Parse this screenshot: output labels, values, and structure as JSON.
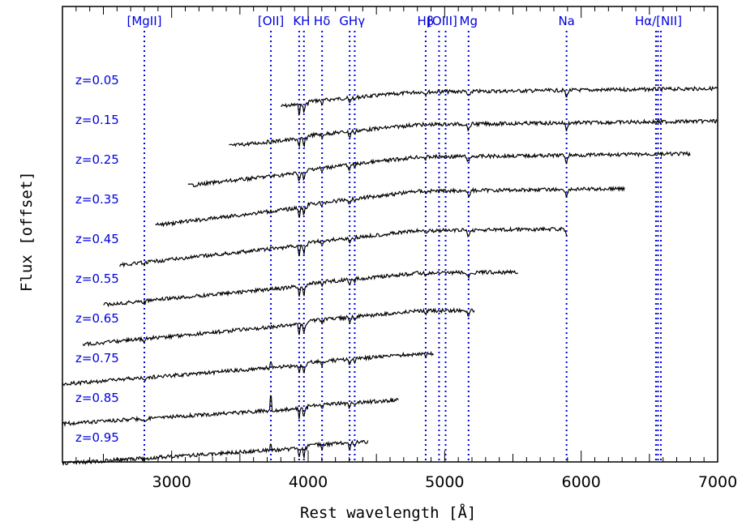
{
  "chart_data": {
    "type": "line",
    "title": "",
    "xlabel": "Rest wavelength [Å]",
    "ylabel": "Flux [offset]",
    "xlim": [
      2200,
      7000
    ],
    "xticks": [
      3000,
      4000,
      5000,
      6000,
      7000
    ],
    "grid": false,
    "line_color": "#000000",
    "label_color": "#0000e0",
    "lines": [
      {
        "label": "[MgII]",
        "x": 2800
      },
      {
        "label": "[OII]",
        "x": 3727
      },
      {
        "label": "K",
        "x": 3934
      },
      {
        "label": "H",
        "x": 3969
      },
      {
        "label": "Hδ",
        "x": 4102
      },
      {
        "label": "G",
        "x": 4304
      },
      {
        "label": "Hγ",
        "x": 4341
      },
      {
        "label": "Hβ",
        "x": 4861
      },
      {
        "label": "[OIII]",
        "x": 4959
      },
      {
        "label": "[OIII]",
        "x": 5007
      },
      {
        "label": "Mg",
        "x": 5175
      },
      {
        "label": "Na",
        "x": 5893
      },
      {
        "label": "Hα/[NII]",
        "x": 6548
      },
      {
        "label": "Hα/[NII]",
        "x": 6563
      },
      {
        "label": "Hα/[NII]",
        "x": 6584
      }
    ],
    "line_labels": [
      {
        "text": "[MgII]",
        "x": 2800
      },
      {
        "text": "[OII]",
        "x": 3727
      },
      {
        "text": "KH",
        "x": 3952
      },
      {
        "text": "Hδ",
        "x": 4102
      },
      {
        "text": "GHγ",
        "x": 4322
      },
      {
        "text": "Hβ",
        "x": 4861
      },
      {
        "text": "[OIII]",
        "x": 4983
      },
      {
        "text": "Mg",
        "x": 5175
      },
      {
        "text": "Na",
        "x": 5893
      },
      {
        "text": "Hα/[NII]",
        "x": 6566
      }
    ],
    "series": [
      {
        "name": "z=0.05",
        "x_start": 3800,
        "x_end": 7000,
        "rise": 1.2
      },
      {
        "name": "z=0.15",
        "x_start": 3420,
        "x_end": 7000,
        "rise": 1.4
      },
      {
        "name": "z=0.25",
        "x_start": 3120,
        "x_end": 6800,
        "rise": 1.6
      },
      {
        "name": "z=0.35",
        "x_start": 2880,
        "x_end": 6320,
        "rise": 1.7
      },
      {
        "name": "z=0.45",
        "x_start": 2620,
        "x_end": 5900,
        "rise": 1.5
      },
      {
        "name": "z=0.55",
        "x_start": 2500,
        "x_end": 5540,
        "rise": 1.3
      },
      {
        "name": "z=0.65",
        "x_start": 2350,
        "x_end": 5220,
        "rise": 1.3
      },
      {
        "name": "z=0.75",
        "x_start": 2200,
        "x_end": 4920,
        "rise": 1.1
      },
      {
        "name": "z=0.85",
        "x_start": 2200,
        "x_end": 4660,
        "rise": 0.9
      },
      {
        "name": "z=0.95",
        "x_start": 2200,
        "x_end": 4440,
        "rise": 0.9
      }
    ]
  }
}
